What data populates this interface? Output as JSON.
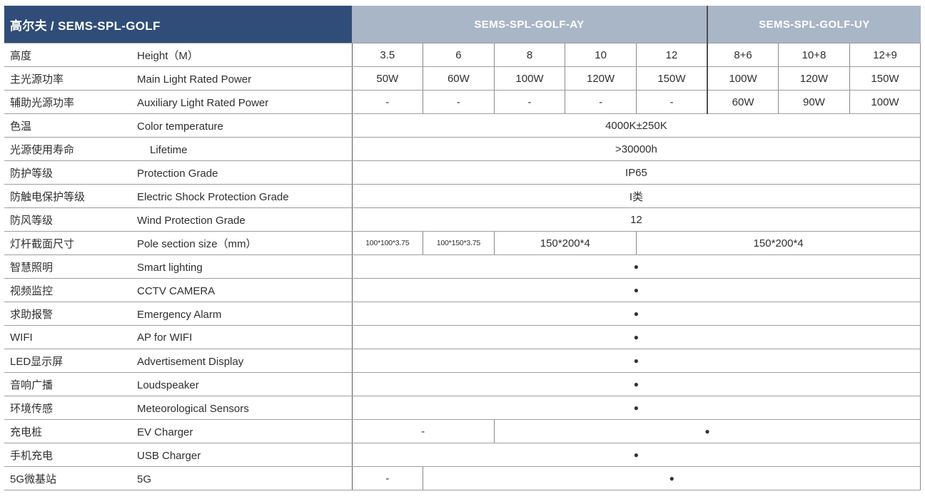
{
  "header": {
    "title": "高尔夫 / SEMS-SPL-GOLF",
    "group_ay": "SEMS-SPL-GOLF-AY",
    "group_uy": "SEMS-SPL-GOLF-UY"
  },
  "colors": {
    "title_bar_navy": "#2f4d78",
    "group_header_gray_blue": "#a9b6c7",
    "border_gray": "#8a8a8a",
    "text_dark": "#2f2f2f"
  },
  "bullet_glyph": "●",
  "rows": [
    {
      "zh": "高度",
      "en": "Height（M）",
      "cells": [
        {
          "t": "3.5"
        },
        {
          "t": "6"
        },
        {
          "t": "8"
        },
        {
          "t": "10"
        },
        {
          "t": "12"
        },
        {
          "t": "8+6"
        },
        {
          "t": "10+8"
        },
        {
          "t": "12+9"
        }
      ]
    },
    {
      "zh": "主光源功率",
      "en": "Main Light Rated Power",
      "cells": [
        {
          "t": "50W"
        },
        {
          "t": "60W"
        },
        {
          "t": "100W"
        },
        {
          "t": "120W"
        },
        {
          "t": "150W"
        },
        {
          "t": "100W"
        },
        {
          "t": "120W"
        },
        {
          "t": "150W"
        }
      ]
    },
    {
      "zh": "辅助光源功率",
      "en": "Auxiliary Light Rated Power",
      "cells": [
        {
          "t": "-"
        },
        {
          "t": "-"
        },
        {
          "t": "-"
        },
        {
          "t": "-"
        },
        {
          "t": "-"
        },
        {
          "t": "60W"
        },
        {
          "t": "90W"
        },
        {
          "t": "100W"
        }
      ]
    },
    {
      "zh": "色温",
      "en": "Color temperature",
      "cells": [
        {
          "t": "4000K±250K"
        }
      ]
    },
    {
      "zh": "光源使用寿命",
      "en": "Lifetime",
      "cells": [
        {
          "t": ">30000h"
        }
      ]
    },
    {
      "zh": "防护等级",
      "en": "Protection Grade",
      "cells": [
        {
          "t": "IP65"
        }
      ]
    },
    {
      "zh": "防触电保护等级",
      "en": "Electric Shock Protection Grade",
      "cells": [
        {
          "t": "I类"
        }
      ]
    },
    {
      "zh": "防风等级",
      "en": "Wind Protection Grade",
      "cells": [
        {
          "t": "12"
        }
      ]
    },
    {
      "zh": "灯杆截面尺寸",
      "en": "Pole section size（mm）",
      "cells": [
        {
          "t": "100*100*3.75"
        },
        {
          "t": "100*150*3.75"
        },
        {
          "t": "150*200*4"
        },
        {
          "t": "150*200*4"
        }
      ]
    },
    {
      "zh": "智慧照明",
      "en": "Smart lighting",
      "cells": [
        {
          "t": "●"
        }
      ]
    },
    {
      "zh": "视频监控",
      "en": "CCTV CAMERA",
      "cells": [
        {
          "t": "●"
        }
      ]
    },
    {
      "zh": "求助报警",
      "en": "Emergency Alarm",
      "cells": [
        {
          "t": "●"
        }
      ]
    },
    {
      "zh": "WIFI",
      "en": "AP for WIFI",
      "cells": [
        {
          "t": "●"
        }
      ]
    },
    {
      "zh": "LED显示屏",
      "en": "Advertisement Display",
      "cells": [
        {
          "t": "●"
        }
      ]
    },
    {
      "zh": "音响广播",
      "en": "Loudspeaker",
      "cells": [
        {
          "t": "●"
        }
      ]
    },
    {
      "zh": "环境传感",
      "en": "Meteorological Sensors",
      "cells": [
        {
          "t": "●"
        }
      ]
    },
    {
      "zh": "充电桩",
      "en": "EV Charger",
      "cells": [
        {
          "t": "-"
        },
        {
          "t": "●"
        }
      ]
    },
    {
      "zh": "手机充电",
      "en": "USB Charger",
      "cells": [
        {
          "t": "●"
        }
      ]
    },
    {
      "zh": "5G微基站",
      "en": "5G",
      "cells": [
        {
          "t": "-"
        },
        {
          "t": "●"
        }
      ]
    }
  ]
}
